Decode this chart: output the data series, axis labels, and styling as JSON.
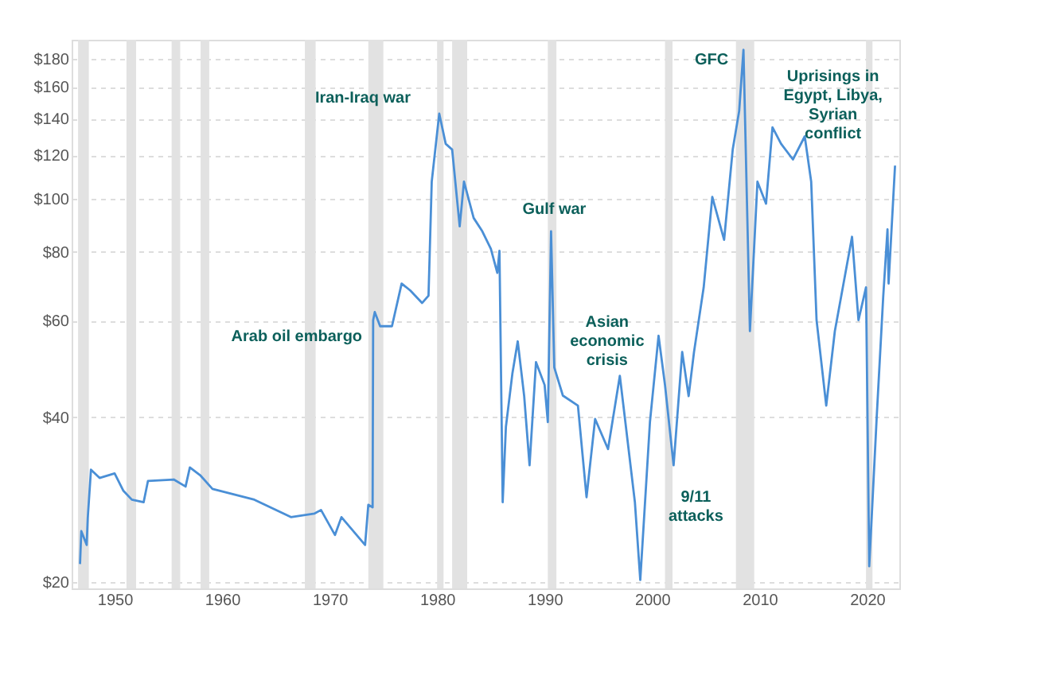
{
  "chart_data": {
    "type": "line",
    "x": [
      1946.78,
      1946.9,
      1947.4,
      1947.5,
      1947.8,
      1948.6,
      1950.0,
      1950.8,
      1951.6,
      1952.7,
      1953.1,
      1955.5,
      1956.6,
      1957.0,
      1958.0,
      1959.1,
      1963.0,
      1966.4,
      1968.6,
      1969.2,
      1970.5,
      1971.1,
      1973.3,
      1973.6,
      1974.0,
      1974.05,
      1974.2,
      1974.7,
      1975.8,
      1976.7,
      1977.5,
      1978.6,
      1979.2,
      1979.5,
      1980.2,
      1980.8,
      1981.4,
      1982.1,
      1982.5,
      1983.4,
      1984.2,
      1985.0,
      1985.6,
      1985.8,
      1986.1,
      1986.4,
      1987.0,
      1987.5,
      1988.1,
      1988.6,
      1989.2,
      1990.0,
      1990.3,
      1990.6,
      1990.9,
      1991.7,
      1993.1,
      1993.9,
      1994.7,
      1995.9,
      1997.0,
      1998.4,
      1998.9,
      1999.8,
      2000.6,
      2001.2,
      2002.0,
      2002.8,
      2003.4,
      2003.9,
      2004.8,
      2005.6,
      2006.7,
      2007.5,
      2008.1,
      2008.5,
      2009.1,
      2009.8,
      2010.6,
      2011.2,
      2012.0,
      2013.1,
      2014.2,
      2014.8,
      2015.3,
      2016.2,
      2017.0,
      2018.6,
      2019.2,
      2019.9,
      2020.2,
      2020.9,
      2021.5,
      2021.9,
      2022.0,
      2022.6
    ],
    "series": [
      {
        "color": "#4a8fd6",
        "values": [
          21.6,
          24.8,
          23.4,
          26.2,
          32.1,
          31.0,
          31.6,
          29.4,
          28.3,
          28.0,
          30.6,
          30.8,
          29.9,
          32.4,
          31.3,
          29.6,
          28.3,
          26.3,
          26.7,
          27.1,
          24.4,
          26.3,
          23.4,
          27.7,
          27.4,
          60.1,
          62.2,
          58.6,
          58.6,
          70.1,
          68.1,
          64.6,
          66.6,
          107.5,
          143,
          126,
          123,
          89.1,
          107.5,
          92.3,
          87.3,
          81.1,
          73.3,
          80.4,
          28.0,
          38.4,
          48.0,
          55.0,
          43.7,
          32.7,
          50.4,
          45.8,
          39.2,
          87.3,
          49.3,
          43.8,
          42.0,
          28.6,
          39.7,
          35.0,
          47.6,
          28.0,
          20.2,
          39.2,
          56.3,
          45.8,
          32.7,
          52.6,
          43.7,
          52.6,
          69.0,
          100.8,
          84.2,
          123,
          144.6,
          187,
          57.4,
          107.5,
          98.0,
          135,
          126,
          118,
          130,
          107.5,
          60.1,
          42.0,
          57.4,
          85.3,
          60.1,
          69.0,
          21.4,
          40.2,
          66.3,
          88.0,
          70.1,
          115
        ]
      }
    ],
    "xlim": [
      1946,
      2023
    ],
    "xticks": [
      1950,
      1960,
      1970,
      1980,
      1990,
      2000,
      2010,
      2020
    ],
    "ylim": [
      19.5,
      195
    ],
    "yticks": [
      {
        "value": 20,
        "label": "$20"
      },
      {
        "value": 40,
        "label": "$40"
      },
      {
        "value": 60,
        "label": "$60"
      },
      {
        "value": 80,
        "label": "$80"
      },
      {
        "value": 100,
        "label": "$100"
      },
      {
        "value": 120,
        "label": "$120"
      },
      {
        "value": 140,
        "label": "$140"
      },
      {
        "value": 160,
        "label": "$160"
      },
      {
        "value": 180,
        "label": "$180"
      }
    ],
    "log": true,
    "grid": "y",
    "bands": [
      {
        "axis": "x",
        "from": 1946.6,
        "to": 1947.6,
        "color": "#e2e2e2"
      },
      {
        "axis": "x",
        "from": 1951.1,
        "to": 1952.0,
        "color": "#e2e2e2"
      },
      {
        "axis": "x",
        "from": 1955.3,
        "to": 1956.1,
        "color": "#e2e2e2"
      },
      {
        "axis": "x",
        "from": 1958.0,
        "to": 1958.8,
        "color": "#e2e2e2"
      },
      {
        "axis": "x",
        "from": 1967.7,
        "to": 1968.7,
        "color": "#e2e2e2"
      },
      {
        "axis": "x",
        "from": 1973.6,
        "to": 1975.0,
        "color": "#e2e2e2"
      },
      {
        "axis": "x",
        "from": 1980.0,
        "to": 1980.6,
        "color": "#e2e2e2"
      },
      {
        "axis": "x",
        "from": 1981.4,
        "to": 1982.8,
        "color": "#e2e2e2"
      },
      {
        "axis": "x",
        "from": 1990.3,
        "to": 1991.1,
        "color": "#e2e2e2"
      },
      {
        "axis": "x",
        "from": 2001.2,
        "to": 2001.9,
        "color": "#e2e2e2"
      },
      {
        "axis": "x",
        "from": 2007.8,
        "to": 2009.5,
        "color": "#e2e2e2"
      },
      {
        "axis": "x",
        "from": 2019.9,
        "to": 2020.5,
        "color": "#e2e2e2"
      }
    ],
    "annotations": [
      {
        "text": "Iran-Iraq war",
        "x": 1980.2,
        "y": 143
      },
      {
        "text": "Arab oil embargo",
        "x": 1974.05,
        "y": 60.1
      },
      {
        "text": "Gulf war",
        "x": 1990.6,
        "y": 87.3
      },
      {
        "text": "Asian\neconomic\ncrisis",
        "x": 1997.0,
        "y": 47.6
      },
      {
        "text": "GFC",
        "x": 2008.5,
        "y": 187
      },
      {
        "text": "9/11\nattacks",
        "x": 2002.0,
        "y": 32.7
      },
      {
        "text": "Uprisings in\nEgypt, Libya,\nSyrian\nconflict",
        "x": 2011.2,
        "y": 135
      }
    ]
  }
}
